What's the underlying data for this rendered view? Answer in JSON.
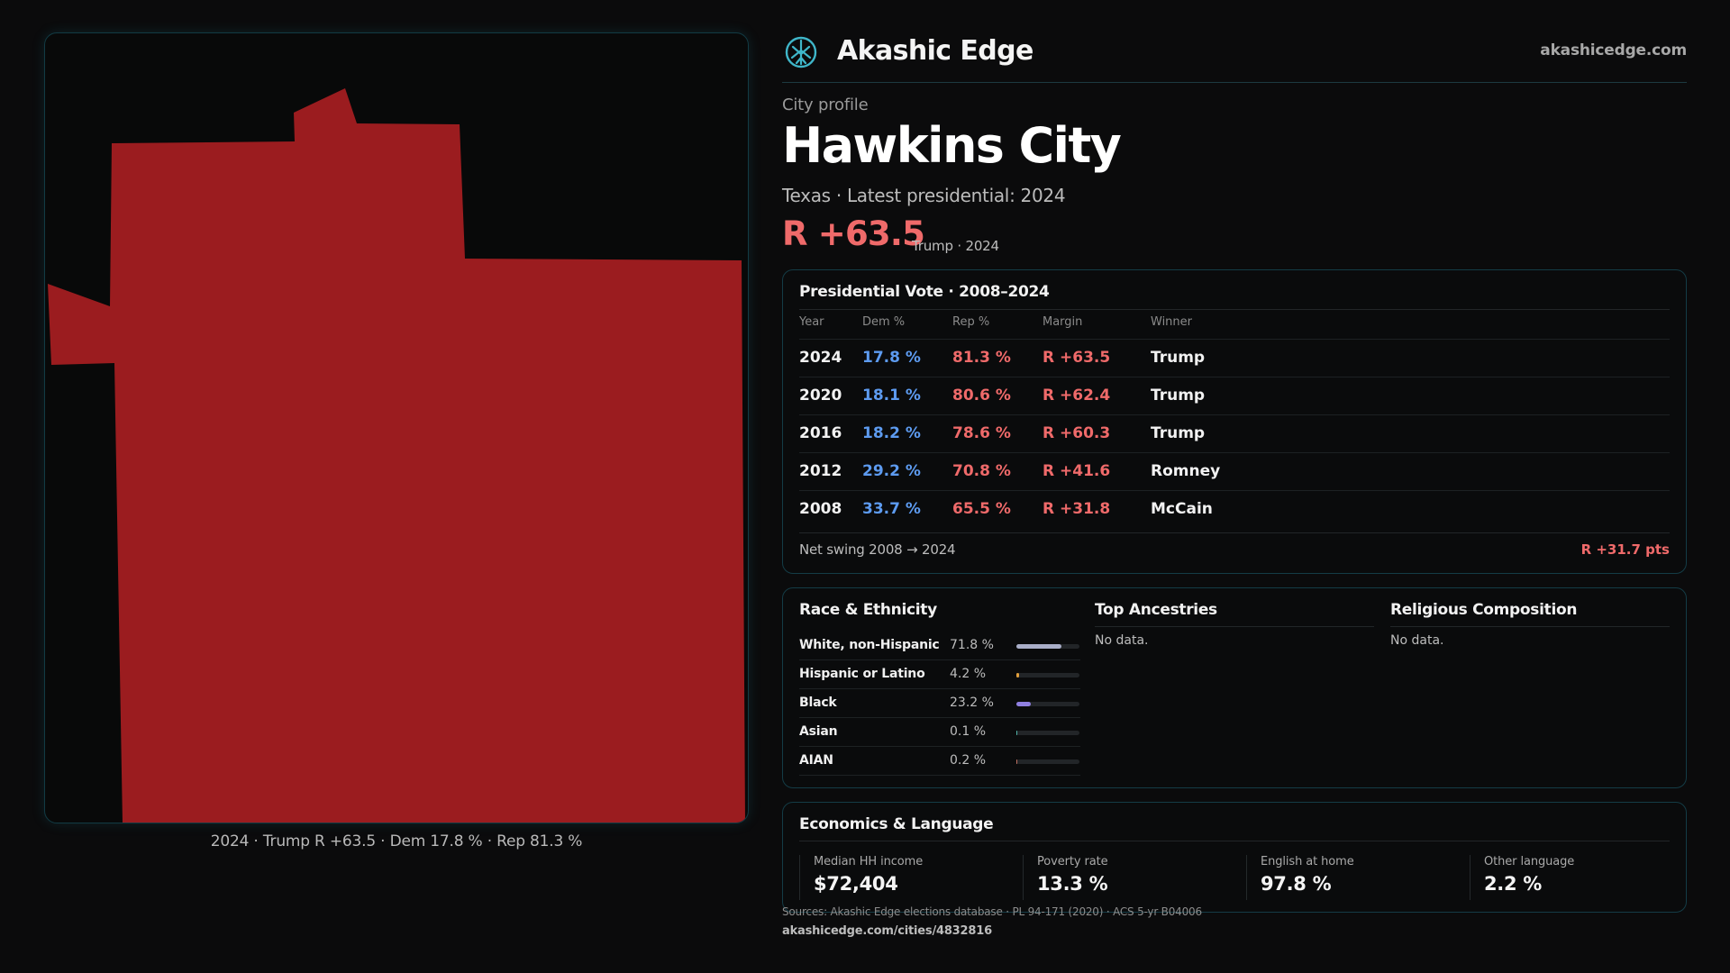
{
  "brand": {
    "name": "Akashic Edge",
    "site": "akashicedge.com"
  },
  "map": {
    "fill_color": "#9b1c1f",
    "caption": "2024 · Trump R +63.5 · Dem 17.8 % · Rep 81.3 %"
  },
  "profile": {
    "label": "City profile",
    "name": "Hawkins City",
    "subtitle": "Texas · Latest presidential: 2024",
    "margin": "R +63.5",
    "margin_sub": "Trump · 2024"
  },
  "vote": {
    "title": "Presidential Vote · 2008–2024",
    "headers": {
      "year": "Year",
      "dem": "Dem %",
      "rep": "Rep %",
      "margin": "Margin",
      "winner": "Winner"
    },
    "rows": [
      {
        "year": "2024",
        "dem": "17.8 %",
        "rep": "81.3 %",
        "margin": "R +63.5",
        "winner": "Trump"
      },
      {
        "year": "2020",
        "dem": "18.1 %",
        "rep": "80.6 %",
        "margin": "R +62.4",
        "winner": "Trump"
      },
      {
        "year": "2016",
        "dem": "18.2 %",
        "rep": "78.6 %",
        "margin": "R +60.3",
        "winner": "Trump"
      },
      {
        "year": "2012",
        "dem": "29.2 %",
        "rep": "70.8 %",
        "margin": "R +41.6",
        "winner": "Romney"
      },
      {
        "year": "2008",
        "dem": "33.7 %",
        "rep": "65.5 %",
        "margin": "R +31.8",
        "winner": "McCain"
      }
    ],
    "swing_label": "Net swing 2008 → 2024",
    "swing_value": "R +31.7 pts"
  },
  "race": {
    "title": "Race & Ethnicity",
    "rows": [
      {
        "name": "White, non-Hispanic",
        "pct": "71.8 %",
        "share": 0.718,
        "color": "#a9aec8"
      },
      {
        "name": "Hispanic or Latino",
        "pct": "4.2 %",
        "share": 0.042,
        "color": "#e2a03c"
      },
      {
        "name": "Black",
        "pct": "23.2 %",
        "share": 0.232,
        "color": "#8f7fe0"
      },
      {
        "name": "Asian",
        "pct": "0.1 %",
        "share": 0.001,
        "color": "#4fb3a8"
      },
      {
        "name": "AIAN",
        "pct": "0.2 %",
        "share": 0.002,
        "color": "#c07060"
      }
    ]
  },
  "ancestries": {
    "title": "Top Ancestries",
    "empty": "No data."
  },
  "religion": {
    "title": "Religious Composition",
    "empty": "No data."
  },
  "economics": {
    "title": "Economics & Language",
    "stats": [
      {
        "label": "Median HH income",
        "value": "$72,404"
      },
      {
        "label": "Poverty rate",
        "value": "13.3 %"
      },
      {
        "label": "English at home",
        "value": "97.8 %"
      },
      {
        "label": "Other language",
        "value": "2.2 %"
      }
    ]
  },
  "footer": {
    "sources": "Sources: Akashic Edge elections database · PL 94-171 (2020) · ACS 5-yr B04006",
    "url": "akashicedge.com/cities/4832816"
  }
}
